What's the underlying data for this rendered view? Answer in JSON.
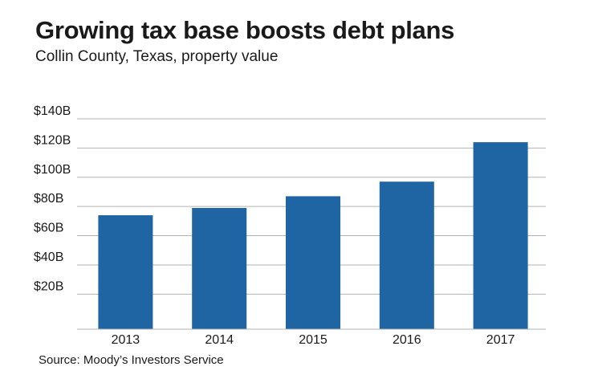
{
  "header": {
    "title": "Growing tax base boosts debt plans",
    "subtitle": "Collin County, Texas, property value"
  },
  "footer": {
    "source": "Source: Moody’s Investors Service"
  },
  "colors": {
    "bar": "#1f64a3",
    "grid": "#b3b3b3",
    "text": "#1a1a1a"
  },
  "chart_data": {
    "type": "bar",
    "title": "Growing tax base boosts debt plans",
    "subtitle": "Collin County, Texas, property value",
    "categories": [
      "2013",
      "2014",
      "2015",
      "2016",
      "2017"
    ],
    "values": [
      74,
      79,
      87,
      97,
      124
    ],
    "value_unit": "billion USD",
    "ylim": [
      20,
      140
    ],
    "yticks": [
      20,
      40,
      60,
      80,
      100,
      120,
      140
    ],
    "ytick_labels": [
      "$20B",
      "$40B",
      "$60B",
      "$80B",
      "$100B",
      "$120B",
      "$140B"
    ],
    "grid": true,
    "legend": "none"
  }
}
